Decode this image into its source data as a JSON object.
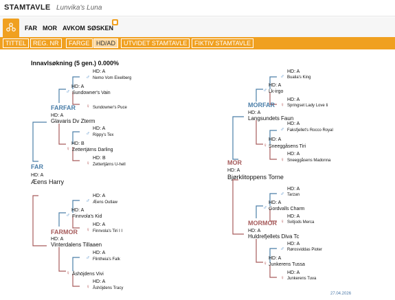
{
  "header": {
    "app_title": "STAMTAVLE",
    "dog_name": "Lunvika's Luna"
  },
  "nav": {
    "items": [
      "FAR",
      "MOR",
      "AVKOM",
      "SØSKEN"
    ]
  },
  "tabs": [
    "TITTEL",
    "REG. NR",
    "FARGE",
    "HD/AD",
    "UTVIDET STAMTAVLE",
    "FIKTIV STAMTAVLE"
  ],
  "active_tab": "HD/AD",
  "inbreeding": "Innavlsøkning (5 gen.) 0.000%",
  "roles": {
    "far": "FAR",
    "mor": "MOR",
    "farfar": "FARFAR",
    "farmor": "FARMOR",
    "morfar": "MORFAR",
    "mormor": "MORMOR"
  },
  "dogs": {
    "d1": {
      "name": "Nemo Vom Eixelberg",
      "hd": "HD: A"
    },
    "d2": {
      "name": "Sundowner's Vain",
      "hd": "HD: A"
    },
    "d3": {
      "name": "Sundowner's Puce",
      "hd": ""
    },
    "d4": {
      "name": "Glavaris Dv Zterm",
      "hd": "HD: A"
    },
    "d5": {
      "name": "Rippy's Tex",
      "hd": "HD: A"
    },
    "d6": {
      "name": "Zettertjärns Darling",
      "hd": "HD: B"
    },
    "d7": {
      "name": "Zettertjärns U-hell",
      "hd": "HD: B"
    },
    "d8": {
      "name": "Æens Harry",
      "hd": "HD: A"
    },
    "d9": {
      "name": "Æens Outlaw",
      "hd": "HD: A"
    },
    "d10": {
      "name": "Finnvola's Kid",
      "hd": "HD: A"
    },
    "d11": {
      "name": "Finnvola's Tiri I I",
      "hd": "HD: A"
    },
    "d12": {
      "name": "Vinterdalens Tillaaen",
      "hd": "HD: A"
    },
    "d13": {
      "name": "Flintheia's Falk",
      "hd": "HD: A"
    },
    "d14": {
      "name": "Åshöjdens Vivi",
      "hd": ""
    },
    "d15": {
      "name": "Åshöjdens Tracy",
      "hd": "HD: A"
    },
    "m1": {
      "name": "Bualia's King",
      "hd": "HD: A"
    },
    "m2": {
      "name": "Lk-irgo",
      "hd": "HD: A"
    },
    "m3": {
      "name": "Springset Lady Love Ii",
      "hd": "HD: A"
    },
    "m4": {
      "name": "Langsundets Faun",
      "hd": "HD: A"
    },
    "m5": {
      "name": "Faksfjellet's Rocco Royal",
      "hd": "HD: A"
    },
    "m6": {
      "name": "Sneeggåsens Tiri",
      "hd": "HD: A"
    },
    "m7": {
      "name": "Sneeggåsens Madonna",
      "hd": "HD: A"
    },
    "m8": {
      "name": "Bjørklitoppens Torne",
      "hd": "HD: A"
    },
    "m9": {
      "name": "Tarzan",
      "hd": "HD: A"
    },
    "m10": {
      "name": "Gordvalls Charm",
      "hd": "HD: A"
    },
    "m11": {
      "name": "Svitjods Merca",
      "hd": "HD: A"
    },
    "m12": {
      "name": "Huldrefjellets Diva Tc",
      "hd": "HD: A"
    },
    "m13": {
      "name": "Rørosviddas Pioter",
      "hd": "HD: A"
    },
    "m14": {
      "name": "Junkerens Tussa",
      "hd": "HD: A"
    },
    "m15": {
      "name": "Junkerens Tuva",
      "hd": "HD: A"
    }
  },
  "male_symbol": "♂",
  "female_symbol": "♀",
  "date": "27.04.2026",
  "colors": {
    "accent": "#f0a020",
    "male": "#4a7ea8",
    "female": "#a65a5a"
  }
}
